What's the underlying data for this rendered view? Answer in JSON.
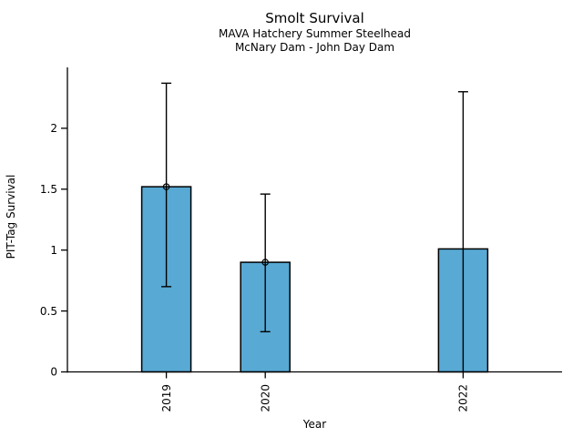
{
  "chart_data": {
    "type": "bar",
    "title": "Smolt Survival",
    "subtitles": [
      "MAVA Hatchery Summer Steelhead",
      "McNary Dam - John Day Dam"
    ],
    "xlabel": "Year",
    "ylabel": "PIT-Tag Survival",
    "categories": [
      "2019",
      "2020",
      "2022"
    ],
    "x": [
      2019,
      2020,
      2022
    ],
    "values": [
      1.52,
      0.9,
      1.01
    ],
    "error_low": [
      0.7,
      0.33,
      0.0
    ],
    "error_high": [
      2.37,
      1.46,
      2.3
    ],
    "error_low_cap": [
      true,
      true,
      false
    ],
    "point_estimate_marker": [
      true,
      true,
      false
    ],
    "yticks": [
      0,
      0.5,
      1,
      1.5,
      2
    ],
    "ytick_labels": [
      "0",
      "0.5",
      "1",
      "1.5",
      "2"
    ],
    "ylim": [
      0,
      2.5
    ],
    "xlim": [
      2018,
      2023
    ],
    "bar_width_years": 0.5,
    "bar_color": "#58A9D4",
    "bar_edge_color": "#000000",
    "error_bar_color": "#000000",
    "axis_color": "#000000",
    "grid": false
  }
}
